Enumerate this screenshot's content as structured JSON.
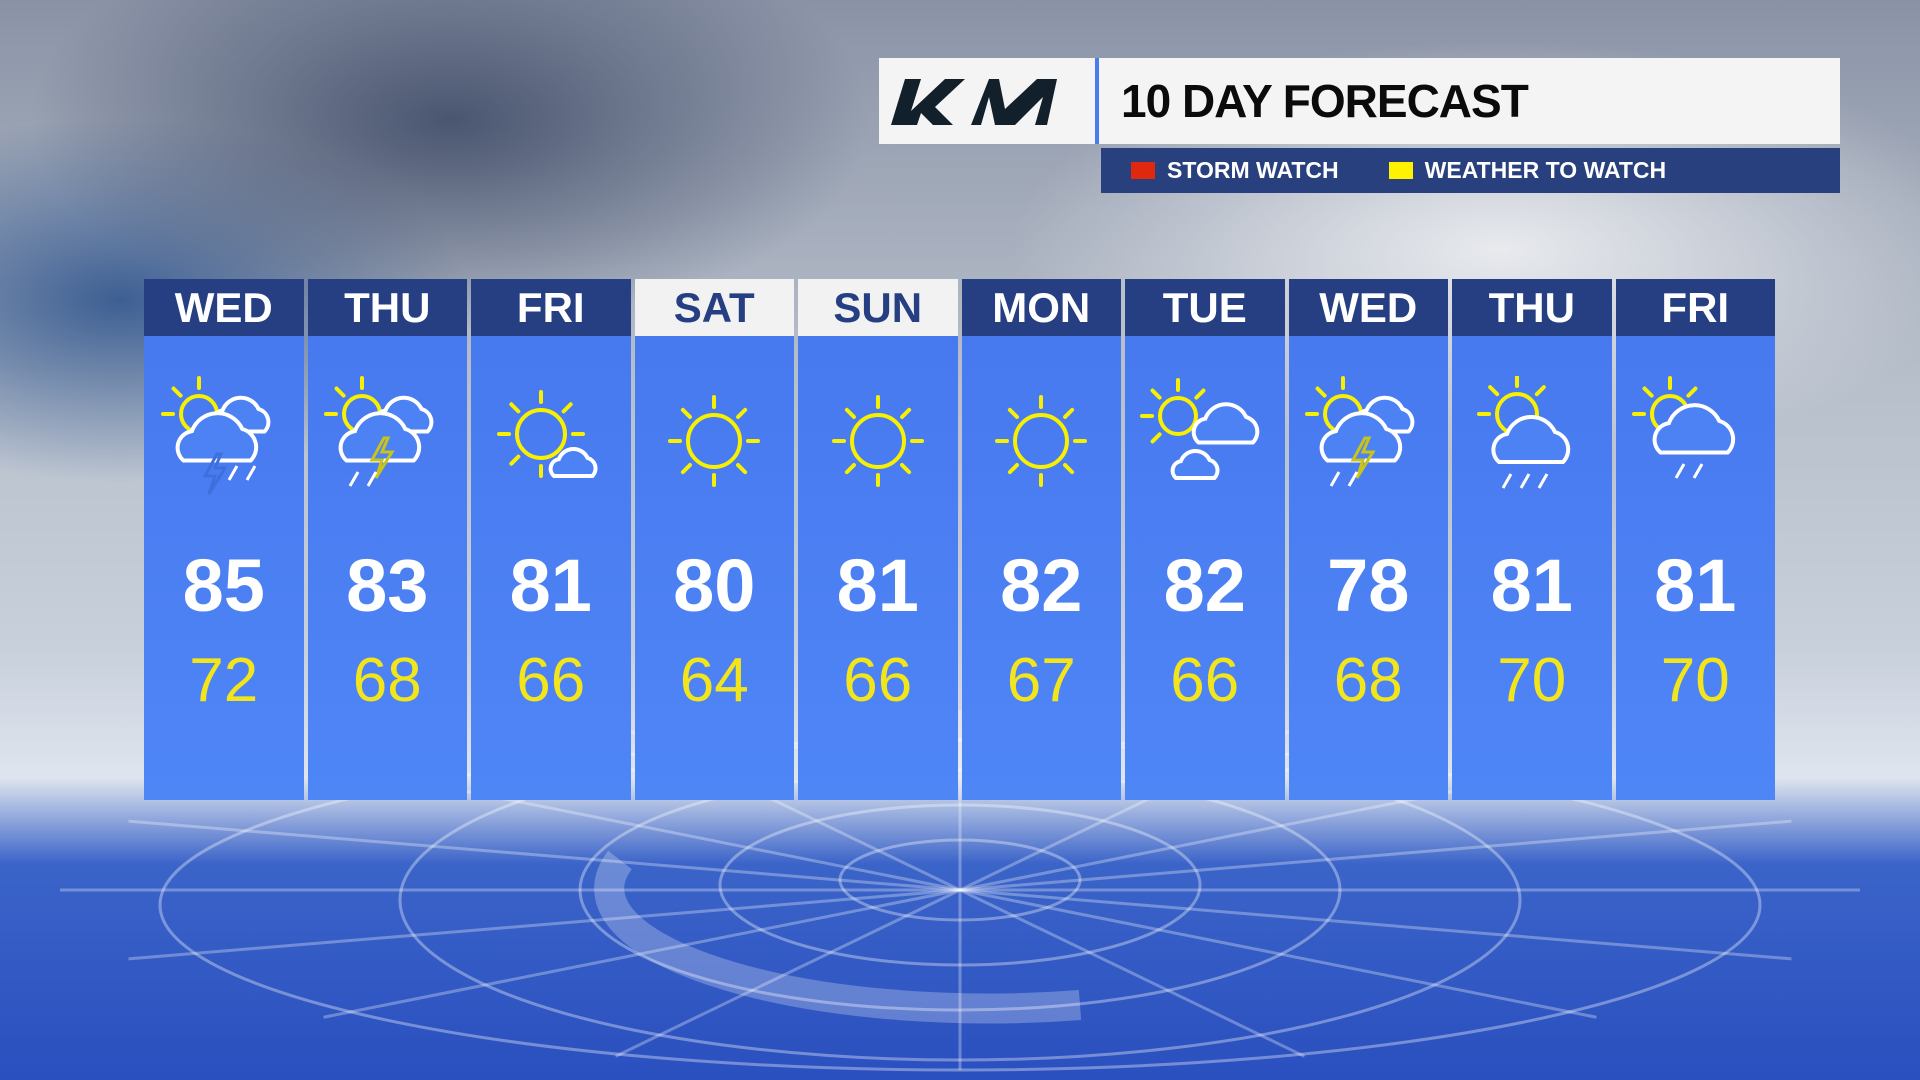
{
  "header": {
    "brand": "KIA",
    "title": "10 DAY FORECAST"
  },
  "legend": [
    {
      "label": "STORM WATCH",
      "color": "#e0280e"
    },
    {
      "label": "WEATHER TO WATCH",
      "color": "#fff200"
    }
  ],
  "days": [
    {
      "day": "WED",
      "high": "85",
      "low": "72",
      "icon": "partly-sunny-storm-icon",
      "highlight": false
    },
    {
      "day": "THU",
      "high": "83",
      "low": "68",
      "icon": "partly-sunny-thunderstorm-icon",
      "highlight": false
    },
    {
      "day": "FRI",
      "high": "81",
      "low": "66",
      "icon": "mostly-sunny-icon",
      "highlight": false
    },
    {
      "day": "SAT",
      "high": "80",
      "low": "64",
      "icon": "sunny-icon",
      "highlight": true
    },
    {
      "day": "SUN",
      "high": "81",
      "low": "66",
      "icon": "sunny-icon",
      "highlight": true
    },
    {
      "day": "MON",
      "high": "82",
      "low": "67",
      "icon": "sunny-icon",
      "highlight": false
    },
    {
      "day": "TUE",
      "high": "82",
      "low": "66",
      "icon": "partly-cloudy-icon",
      "highlight": false
    },
    {
      "day": "WED",
      "high": "78",
      "low": "68",
      "icon": "partly-sunny-thunderstorm-icon",
      "highlight": false
    },
    {
      "day": "THU",
      "high": "81",
      "low": "70",
      "icon": "partly-sunny-showers-icon",
      "highlight": false
    },
    {
      "day": "FRI",
      "high": "81",
      "low": "70",
      "icon": "partly-sunny-drizzle-icon",
      "highlight": false
    }
  ],
  "colors": {
    "header": "#263f82",
    "column": "#4a7ef2",
    "high": "#ffffff",
    "low": "#f2e51c"
  }
}
